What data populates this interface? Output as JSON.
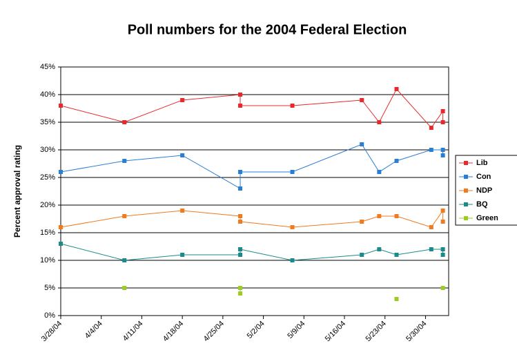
{
  "chart_data": {
    "type": "line",
    "title": "Poll numbers for the 2004 Federal Election",
    "y_label": "Percent approval rating",
    "x": [
      "3/28/04",
      "4/8/04",
      "4/18/04",
      "4/28/04",
      "4/28/04",
      "5/7/04",
      "5/19/04",
      "5/22/04",
      "5/25/04",
      "5/31/04",
      "6/2/04",
      "6/2/04"
    ],
    "xlim": [
      "3/28/04",
      "6/3/04"
    ],
    "xticks": [
      "3/28/04",
      "4/4/04",
      "4/11/04",
      "4/18/04",
      "4/25/04",
      "5/2/04",
      "5/9/04",
      "5/16/04",
      "5/23/04",
      "5/30/04"
    ],
    "ylim": [
      0,
      45
    ],
    "yticks": [
      {
        "value": 0,
        "label": "0%"
      },
      {
        "value": 5,
        "label": "5%"
      },
      {
        "value": 10,
        "label": "10%"
      },
      {
        "value": 15,
        "label": "15%"
      },
      {
        "value": 20,
        "label": "20%"
      },
      {
        "value": 25,
        "label": "25%"
      },
      {
        "value": 30,
        "label": "30%"
      },
      {
        "value": 35,
        "label": "35%"
      },
      {
        "value": 40,
        "label": "40%"
      },
      {
        "value": 45,
        "label": "45%"
      }
    ],
    "grid": true,
    "legend": "right",
    "series": [
      {
        "name": "Lib",
        "color": "#e8282b",
        "values": [
          38,
          35,
          39,
          40,
          38,
          38,
          39,
          35,
          41,
          34,
          37,
          35
        ]
      },
      {
        "name": "Con",
        "color": "#2a7ed3",
        "values": [
          26,
          28,
          29,
          23,
          26,
          26,
          31,
          26,
          28,
          30,
          30,
          29
        ]
      },
      {
        "name": "NDP",
        "color": "#f07a1e",
        "values": [
          16,
          18,
          19,
          18,
          17,
          16,
          17,
          18,
          18,
          16,
          19,
          17
        ]
      },
      {
        "name": "BQ",
        "color": "#1a8a8a",
        "values": [
          13,
          10,
          11,
          11,
          12,
          10,
          11,
          12,
          11,
          12,
          12,
          11
        ]
      },
      {
        "name": "Green",
        "color": "#9acd1e",
        "values": [
          null,
          5,
          null,
          5,
          4,
          null,
          null,
          null,
          3,
          null,
          5,
          null
        ]
      }
    ]
  }
}
